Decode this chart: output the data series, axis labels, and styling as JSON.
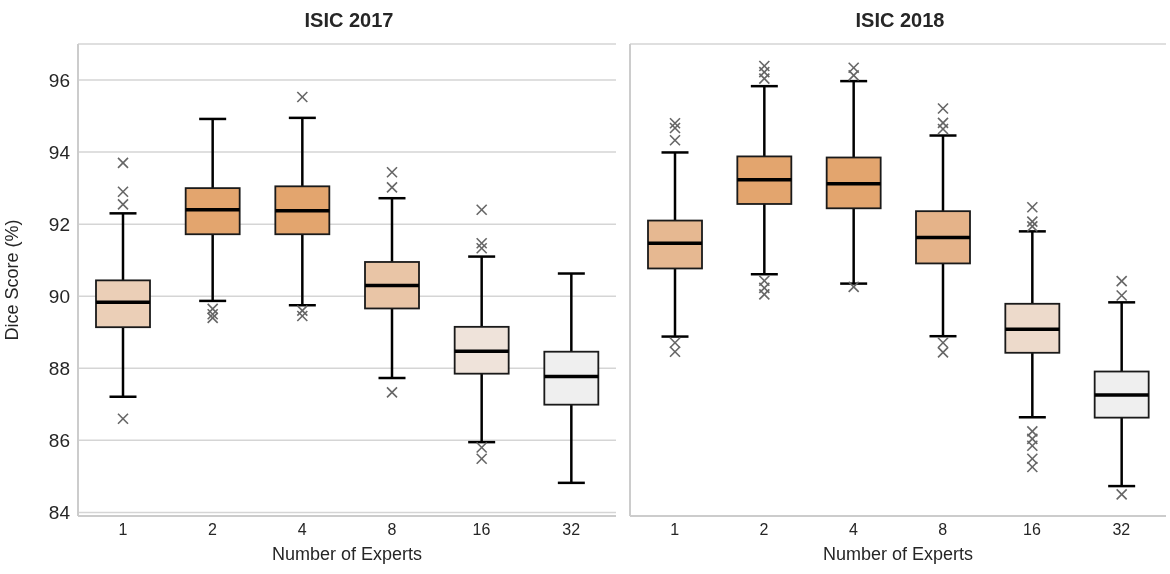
{
  "chart_data": [
    {
      "type": "box",
      "title": "ISIC 2017",
      "xlabel": "Number of Experts",
      "ylabel": "Dice Score (%)",
      "categories": [
        "1",
        "2",
        "4",
        "8",
        "16",
        "32"
      ],
      "colors": [
        "#ebcfb7",
        "#e3a56e",
        "#e3a56e",
        "#e9c5a6",
        "#efe3da",
        "#efefef"
      ],
      "marker": "cross",
      "grid": "y",
      "ylim": [
        83.9,
        97
      ],
      "yticks": [
        84,
        86,
        88,
        90,
        92,
        94,
        96
      ],
      "boxes": [
        {
          "low": 87.21,
          "q1": 89.14,
          "median": 89.83,
          "q3": 90.44,
          "high": 92.3,
          "outliers": [
            93.7,
            92.9,
            92.55,
            86.6
          ]
        },
        {
          "low": 89.87,
          "q1": 91.72,
          "median": 92.4,
          "q3": 93.0,
          "high": 94.92,
          "outliers": [
            89.65,
            89.5,
            89.4
          ]
        },
        {
          "low": 89.75,
          "q1": 91.72,
          "median": 92.37,
          "q3": 93.05,
          "high": 94.95,
          "outliers": [
            95.53,
            89.6,
            89.45
          ]
        },
        {
          "low": 87.73,
          "q1": 89.66,
          "median": 90.3,
          "q3": 90.95,
          "high": 92.72,
          "outliers": [
            93.44,
            93.02,
            87.33
          ]
        },
        {
          "low": 85.95,
          "q1": 87.85,
          "median": 88.47,
          "q3": 89.15,
          "high": 91.1,
          "outliers": [
            92.4,
            91.47,
            91.33,
            85.8,
            85.49
          ]
        },
        {
          "low": 84.82,
          "q1": 86.99,
          "median": 87.77,
          "q3": 88.46,
          "high": 90.63
        }
      ]
    },
    {
      "type": "box",
      "title": "ISIC 2018",
      "xlabel": "Number of Experts",
      "categories": [
        "1",
        "2",
        "4",
        "8",
        "16",
        "32"
      ],
      "colors": [
        "#e6b891",
        "#e3a56e",
        "#e3a56e",
        "#e5b389",
        "#eddacb",
        "#efefef"
      ],
      "marker": "cross",
      "grid": "y",
      "ylim": [
        83.9,
        97
      ],
      "yticks": [
        84,
        86,
        88,
        90,
        92,
        94,
        96
      ],
      "tick_labels": "x",
      "boxes": [
        {
          "low": 88.88,
          "q1": 90.77,
          "median": 91.47,
          "q3": 92.1,
          "high": 93.99,
          "outliers": [
            94.8,
            94.67,
            94.33,
            88.71,
            88.46
          ]
        },
        {
          "low": 90.61,
          "q1": 92.56,
          "median": 93.23,
          "q3": 93.88,
          "high": 95.83,
          "outliers": [
            96.39,
            96.22,
            96.04,
            90.43,
            90.23,
            90.05
          ]
        },
        {
          "low": 90.35,
          "q1": 92.44,
          "median": 93.12,
          "q3": 93.85,
          "high": 95.97,
          "outliers": [
            96.34,
            96.13,
            90.26
          ]
        },
        {
          "low": 88.89,
          "q1": 90.91,
          "median": 91.63,
          "q3": 92.36,
          "high": 94.46,
          "outliers": [
            95.21,
            94.81,
            94.64,
            88.71,
            88.44
          ]
        },
        {
          "low": 86.64,
          "q1": 88.43,
          "median": 89.08,
          "q3": 89.79,
          "high": 91.8,
          "outliers": [
            92.47,
            92.07,
            91.94,
            86.25,
            86.04,
            85.85,
            85.49,
            85.26
          ]
        },
        {
          "low": 84.73,
          "q1": 86.63,
          "median": 87.26,
          "q3": 87.91,
          "high": 89.83,
          "outliers": [
            90.42,
            90.02,
            84.5
          ]
        }
      ]
    }
  ]
}
